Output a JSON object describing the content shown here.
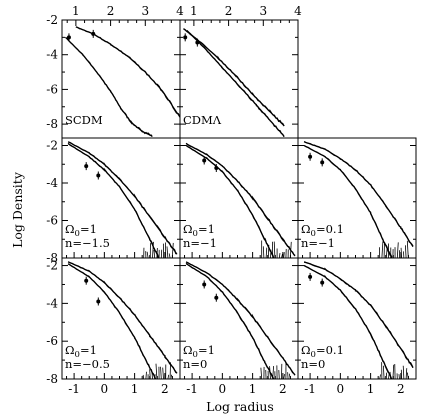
{
  "chart_data": [
    {
      "type": "line",
      "panel": "SCDM",
      "labels": [
        "SCDM"
      ],
      "bottom_axis": "Log radius",
      "top_axis": {
        "ticks": [
          "1",
          "2",
          "3",
          "4"
        ],
        "range": [
          0.6,
          4.0
        ]
      },
      "ylabel": "Log Density",
      "ylim": [
        -8.8,
        -2.0
      ],
      "y_ticks": [
        "-2",
        "-4",
        "-6",
        "-8"
      ],
      "series": [
        {
          "values": [
            [
              1.0,
              -2.4
            ],
            [
              1.5,
              -2.8
            ],
            [
              2.0,
              -3.4
            ],
            [
              2.5,
              -4.1
            ],
            [
              3.0,
              -5.0
            ],
            [
              3.5,
              -6.1
            ],
            [
              4.0,
              -7.6
            ]
          ]
        },
        {
          "values": [
            [
              0.7,
              -3.0
            ],
            [
              1.2,
              -4.0
            ],
            [
              1.6,
              -5.0
            ],
            [
              2.0,
              -6.1
            ],
            [
              2.3,
              -7.1
            ],
            [
              2.6,
              -7.9
            ],
            [
              2.9,
              -8.4
            ],
            [
              3.2,
              -8.7
            ]
          ]
        }
      ],
      "points": [
        [
          0.8,
          -3.0
        ],
        [
          1.5,
          -2.8
        ]
      ]
    },
    {
      "type": "line",
      "panel": "CDMΛ",
      "labels": [
        "CDMΛ"
      ],
      "bottom_axis": "Log radius",
      "top_axis": {
        "ticks": [
          "1",
          "2",
          "3",
          "4"
        ],
        "range": [
          0.6,
          4.0
        ]
      },
      "ylim": [
        -8.8,
        -2.0
      ],
      "series": [
        {
          "values": [
            [
              0.7,
              -2.5
            ],
            [
              1.2,
              -3.3
            ],
            [
              1.7,
              -4.2
            ],
            [
              2.2,
              -5.2
            ],
            [
              2.7,
              -6.3
            ],
            [
              3.2,
              -7.3
            ],
            [
              3.6,
              -8.1
            ]
          ]
        },
        {
          "values": [
            [
              0.8,
              -2.6
            ],
            [
              1.3,
              -3.6
            ],
            [
              1.8,
              -4.7
            ],
            [
              2.3,
              -5.8
            ],
            [
              2.8,
              -6.9
            ],
            [
              3.2,
              -7.8
            ],
            [
              3.6,
              -8.7
            ]
          ]
        }
      ],
      "points": [
        [
          0.75,
          -3.0
        ],
        [
          1.1,
          -3.3
        ]
      ]
    },
    {
      "type": "line",
      "panel": "Ω0=1 n=−1.5",
      "labels": [
        "Ω",
        "0",
        "=1",
        "n=−1.5"
      ],
      "x_ticks": [
        "-1",
        "0",
        "1",
        "2"
      ],
      "xlim": [
        -1.4,
        2.5
      ],
      "ylim": [
        -8.0,
        -1.6
      ],
      "series": [
        {
          "values": [
            [
              -1.2,
              -1.8
            ],
            [
              -0.5,
              -2.4
            ],
            [
              0.0,
              -3.0
            ],
            [
              0.5,
              -3.8
            ],
            [
              1.0,
              -4.7
            ],
            [
              1.5,
              -5.8
            ],
            [
              2.0,
              -6.9
            ],
            [
              2.4,
              -7.8
            ]
          ]
        },
        {
          "values": [
            [
              -1.2,
              -1.9
            ],
            [
              -0.5,
              -2.6
            ],
            [
              0.0,
              -3.3
            ],
            [
              0.5,
              -4.2
            ],
            [
              1.0,
              -5.4
            ],
            [
              1.5,
              -7.0
            ],
            [
              1.8,
              -8.0
            ]
          ]
        }
      ],
      "points": [
        [
          -0.6,
          -3.1
        ],
        [
          -0.2,
          -3.6
        ]
      ]
    },
    {
      "type": "line",
      "panel": "Ω0=1 n=−1",
      "labels": [
        "Ω",
        "0",
        "=1",
        "n=−1"
      ],
      "x_ticks": [
        "-1",
        "0",
        "1",
        "2"
      ],
      "xlim": [
        -1.4,
        2.5
      ],
      "ylim": [
        -8.0,
        -1.6
      ],
      "series": [
        {
          "values": [
            [
              -1.2,
              -1.9
            ],
            [
              -0.5,
              -2.5
            ],
            [
              0.0,
              -3.1
            ],
            [
              0.5,
              -3.9
            ],
            [
              1.0,
              -4.8
            ],
            [
              1.5,
              -5.9
            ],
            [
              2.0,
              -7.0
            ],
            [
              2.4,
              -7.9
            ]
          ]
        },
        {
          "values": [
            [
              -1.2,
              -2.0
            ],
            [
              -0.5,
              -2.7
            ],
            [
              0.0,
              -3.4
            ],
            [
              0.5,
              -4.4
            ],
            [
              1.0,
              -5.7
            ],
            [
              1.4,
              -7.0
            ],
            [
              1.7,
              -8.0
            ]
          ]
        }
      ],
      "points": [
        [
          -0.6,
          -2.8
        ],
        [
          -0.2,
          -3.2
        ]
      ]
    },
    {
      "type": "line",
      "panel": "Ω0=0.1 n=−1",
      "labels": [
        "Ω",
        "0",
        "=0.1",
        "n=−1"
      ],
      "x_ticks": [
        "-1",
        "0",
        "1",
        "2"
      ],
      "xlim": [
        -1.4,
        2.5
      ],
      "ylim": [
        -8.0,
        -1.6
      ],
      "series": [
        {
          "values": [
            [
              -1.2,
              -1.8
            ],
            [
              -0.5,
              -2.2
            ],
            [
              0.0,
              -2.7
            ],
            [
              0.5,
              -3.3
            ],
            [
              1.0,
              -4.1
            ],
            [
              1.5,
              -5.2
            ],
            [
              2.0,
              -6.4
            ],
            [
              2.4,
              -7.4
            ]
          ]
        },
        {
          "values": [
            [
              -1.2,
              -2.0
            ],
            [
              -0.5,
              -2.6
            ],
            [
              0.0,
              -3.3
            ],
            [
              0.5,
              -4.3
            ],
            [
              1.0,
              -5.6
            ],
            [
              1.4,
              -7.0
            ],
            [
              1.7,
              -8.0
            ]
          ]
        }
      ],
      "points": [
        [
          -1.0,
          -2.6
        ],
        [
          -0.6,
          -2.9
        ]
      ]
    },
    {
      "type": "line",
      "panel": "Ω0=1 n=−0.5",
      "labels": [
        "Ω",
        "0",
        "=1",
        "n=−0.5"
      ],
      "x_ticks": [
        "-1",
        "0",
        "1",
        "2"
      ],
      "xlim": [
        -1.4,
        2.5
      ],
      "ylim": [
        -8.0,
        -1.6
      ],
      "series": [
        {
          "values": [
            [
              -1.2,
              -1.8
            ],
            [
              -0.5,
              -2.3
            ],
            [
              0.0,
              -2.9
            ],
            [
              0.5,
              -3.7
            ],
            [
              1.0,
              -4.6
            ],
            [
              1.5,
              -5.7
            ],
            [
              2.0,
              -6.8
            ],
            [
              2.4,
              -7.7
            ]
          ]
        },
        {
          "values": [
            [
              -1.2,
              -1.9
            ],
            [
              -0.5,
              -2.6
            ],
            [
              0.0,
              -3.4
            ],
            [
              0.5,
              -4.5
            ],
            [
              1.0,
              -5.8
            ],
            [
              1.4,
              -7.1
            ],
            [
              1.7,
              -8.0
            ]
          ]
        }
      ],
      "points": [
        [
          -0.6,
          -2.8
        ],
        [
          -0.2,
          -3.9
        ]
      ]
    },
    {
      "type": "line",
      "panel": "Ω0=1 n=0",
      "labels": [
        "Ω",
        "0",
        "=1",
        "n=0"
      ],
      "x_ticks": [
        "-1",
        "0",
        "1",
        "2"
      ],
      "xlim": [
        -1.4,
        2.5
      ],
      "ylim": [
        -8.0,
        -1.6
      ],
      "series": [
        {
          "values": [
            [
              -1.2,
              -1.8
            ],
            [
              -0.5,
              -2.4
            ],
            [
              0.0,
              -3.0
            ],
            [
              0.5,
              -3.8
            ],
            [
              1.0,
              -4.7
            ],
            [
              1.5,
              -5.8
            ],
            [
              2.0,
              -6.9
            ],
            [
              2.4,
              -7.8
            ]
          ]
        },
        {
          "values": [
            [
              -1.2,
              -1.9
            ],
            [
              -0.5,
              -2.6
            ],
            [
              0.0,
              -3.4
            ],
            [
              0.5,
              -4.5
            ],
            [
              1.0,
              -5.8
            ],
            [
              1.4,
              -7.1
            ],
            [
              1.7,
              -8.0
            ]
          ]
        }
      ],
      "points": [
        [
          -0.6,
          -3.0
        ],
        [
          -0.2,
          -3.7
        ]
      ]
    },
    {
      "type": "line",
      "panel": "Ω0=0.1 n=0",
      "labels": [
        "Ω",
        "0",
        "=0.1",
        "n=0"
      ],
      "x_ticks": [
        "-1",
        "0",
        "1",
        "2"
      ],
      "xlim": [
        -1.4,
        2.5
      ],
      "ylim": [
        -8.0,
        -1.6
      ],
      "series": [
        {
          "values": [
            [
              -1.2,
              -1.8
            ],
            [
              -0.5,
              -2.2
            ],
            [
              0.0,
              -2.7
            ],
            [
              0.5,
              -3.3
            ],
            [
              1.0,
              -4.1
            ],
            [
              1.5,
              -5.2
            ],
            [
              2.0,
              -6.4
            ],
            [
              2.4,
              -7.4
            ]
          ]
        },
        {
          "values": [
            [
              -1.2,
              -2.0
            ],
            [
              -0.5,
              -2.6
            ],
            [
              0.0,
              -3.3
            ],
            [
              0.5,
              -4.3
            ],
            [
              1.0,
              -5.6
            ],
            [
              1.4,
              -7.0
            ],
            [
              1.7,
              -8.0
            ]
          ]
        }
      ],
      "points": [
        [
          -1.0,
          -2.6
        ],
        [
          -0.6,
          -2.9
        ]
      ]
    }
  ],
  "axis_titles": {
    "xlabel": "Log radius",
    "ylabel": "Log Density"
  }
}
